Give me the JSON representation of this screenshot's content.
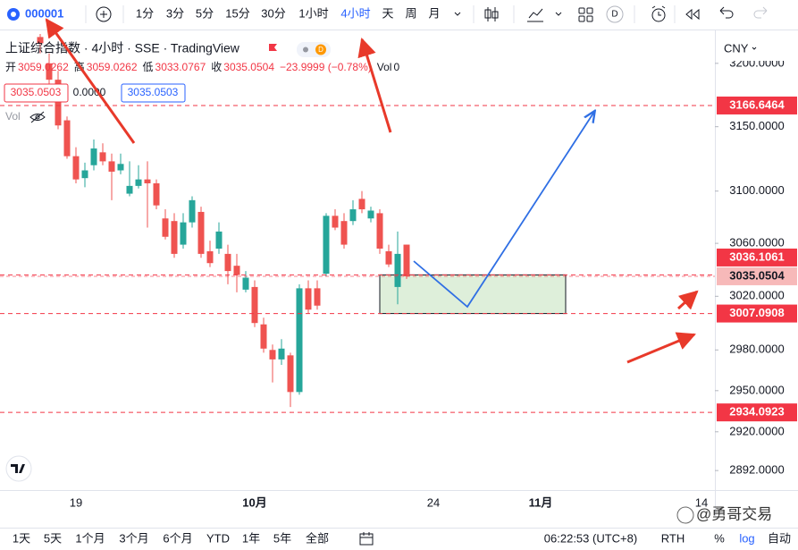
{
  "toolbar": {
    "symbol": "000001",
    "intervals": [
      "1分",
      "3分",
      "5分",
      "15分",
      "30分",
      "1小时",
      "4小时",
      "天",
      "周",
      "月"
    ],
    "active_interval": "4小时",
    "badge": "D"
  },
  "legend": {
    "title": "上证综合指数 · 4小时 · SSE · TradingView",
    "badge": "D",
    "ohlc_labels": [
      "开",
      "高",
      "低",
      "收"
    ],
    "change": "−23.9999 (−0.78%)",
    "vol_label": "Vol",
    "vol_value": "0",
    "bid": "3035.0503",
    "spread": "0.0000",
    "ask": "3035.0503",
    "volume_indicator": "Vol"
  },
  "currency": "CNY",
  "bottom_bar": {
    "ranges": [
      "1天",
      "5天",
      "1个月",
      "3个月",
      "6个月",
      "YTD",
      "1年",
      "5年",
      "全部"
    ],
    "time": "06:22:53 (UTC+8)",
    "session": "RTH",
    "percent": "%",
    "log": "log",
    "auto": "自动"
  },
  "watermark": "@勇哥交易",
  "chart_data": {
    "type": "candlestick",
    "categories": [
      null,
      null,
      null,
      null,
      "19",
      null,
      null,
      null,
      null,
      null,
      null,
      null,
      null,
      null,
      null,
      null,
      null,
      null,
      null,
      null,
      null,
      null,
      null,
      null,
      "10月",
      null,
      null,
      null,
      null,
      null,
      null,
      null,
      null,
      null,
      null,
      null,
      null,
      null,
      null,
      null,
      null,
      null,
      null,
      null,
      "24",
      null,
      null,
      null,
      null,
      null,
      null,
      null,
      null,
      null,
      null,
      null,
      "11月",
      null,
      null,
      null,
      null,
      null,
      null,
      null,
      null,
      null,
      null,
      null,
      null,
      null,
      null,
      null,
      null,
      null,
      "14",
      null
    ],
    "open": [
      3221,
      3200,
      3187,
      3155,
      3127,
      3110,
      3120,
      3130,
      3123,
      3116,
      3098,
      3104,
      3109,
      3106,
      3079,
      3077,
      3059,
      3076,
      3084,
      3054,
      3056,
      3052,
      3043,
      3025,
      3027,
      2999,
      2980,
      2973,
      2976,
      2949,
      3026,
      3026,
      3037,
      3081,
      3077,
      3077,
      3094,
      3079,
      3083,
      3054,
      3027,
      3059.0262,
      null,
      null,
      null,
      null,
      null,
      null,
      null,
      null,
      null,
      null,
      null,
      null,
      null,
      null,
      null,
      null,
      null,
      null,
      null,
      null,
      null,
      null,
      null,
      null,
      null,
      null,
      null,
      null,
      null,
      null,
      null,
      null,
      null,
      null
    ],
    "high": [
      3224,
      3208,
      3194,
      3158,
      3134,
      3122,
      3140,
      3137,
      3129,
      3129,
      3123,
      3120,
      3123,
      3109,
      3086,
      3083,
      3083,
      3096,
      3088,
      3062,
      3076,
      3059,
      3052,
      3039,
      3032,
      3004,
      2984,
      2988,
      2978,
      3029,
      3032,
      3032,
      3083,
      3086,
      3083,
      3093,
      3100,
      3088,
      3086,
      3059,
      3069,
      3059.0262,
      null,
      null,
      null,
      null,
      null,
      null,
      null,
      null,
      null,
      null,
      null,
      null,
      null,
      null,
      null,
      null,
      null,
      null,
      null,
      null,
      null,
      null,
      null,
      null,
      null,
      null,
      null,
      null,
      null,
      null,
      null,
      null,
      null,
      null
    ],
    "low": [
      3208,
      3183,
      3148,
      3125,
      3106,
      3103,
      3116,
      3120,
      3093,
      3113,
      3096,
      3102,
      3072,
      3086,
      3063,
      3049,
      3056,
      3072,
      3049,
      3042,
      3052,
      3029,
      3023,
      3023,
      2997,
      2978,
      2956,
      2969,
      2938,
      2947,
      3007,
      3010,
      3035,
      3070,
      3056,
      3074,
      3083,
      3076,
      3052,
      3042,
      3014,
      3033.0767,
      null,
      null,
      null,
      null,
      null,
      null,
      null,
      null,
      null,
      null,
      null,
      null,
      null,
      null,
      null,
      null,
      null,
      null,
      null,
      null,
      null,
      null,
      null,
      null,
      null,
      null,
      null,
      null,
      null,
      null,
      null,
      null,
      null,
      null
    ],
    "close": [
      3216,
      3187,
      3151,
      3127,
      3109,
      3116,
      3133,
      3123,
      3115,
      3121,
      3104,
      3109,
      3106,
      3089,
      3065,
      3052,
      3076,
      3093,
      3052,
      3045,
      3069,
      3039,
      3036,
      3034,
      3000,
      2981,
      2973,
      2981,
      2949,
      3026,
      3010,
      3013,
      3081,
      3072,
      3059,
      3086,
      3086,
      3085,
      3056,
      3044,
      3052,
      3035.0504,
      null,
      null,
      null,
      null,
      null,
      null,
      null,
      null,
      null,
      null,
      null,
      null,
      null,
      null,
      null,
      null,
      null,
      null,
      null,
      null,
      null,
      null,
      null,
      null,
      null,
      null,
      null,
      null,
      null,
      null,
      null,
      null,
      null,
      null
    ],
    "up_color": "#26a69a",
    "down_color": "#ef5350",
    "ylim": [
      2878,
      3222
    ],
    "log_scale": true,
    "yticks": [
      {
        "value": 3200,
        "label": "3200.0000"
      },
      {
        "value": 3150,
        "label": "3150.0000"
      },
      {
        "value": 3100,
        "label": "3100.0000"
      },
      {
        "value": 3060,
        "label": "3060.0000"
      },
      {
        "value": 3020,
        "label": "3020.0000"
      },
      {
        "value": 2980,
        "label": "2980.0000"
      },
      {
        "value": 2950,
        "label": "2950.0000"
      },
      {
        "value": 2920,
        "label": "2920.0000"
      },
      {
        "value": 2892,
        "label": "2892.0000"
      }
    ],
    "levels": [
      3166.6464,
      3036.1061,
      3007.0908,
      2934.0923
    ],
    "level_color": "#f23645"
  }
}
